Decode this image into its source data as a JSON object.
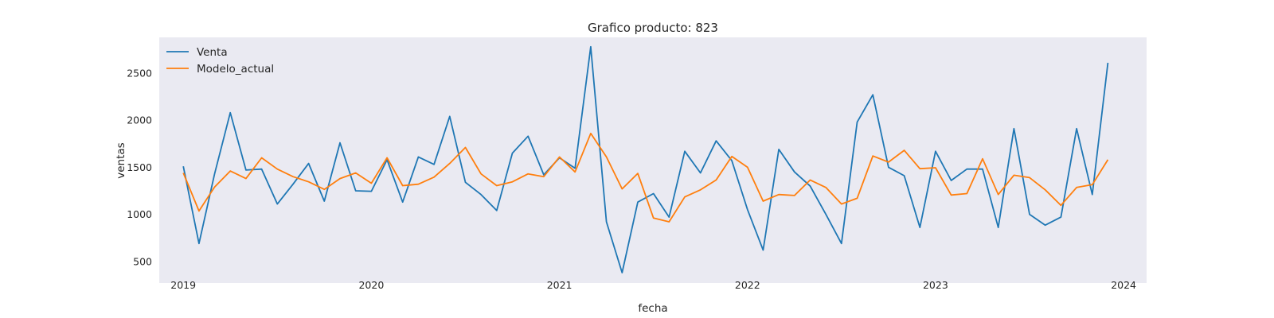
{
  "chart_data": {
    "type": "line",
    "title": "Grafico producto: 823",
    "xlabel": "fecha",
    "ylabel": "ventas",
    "x_start": "2019-01",
    "x": [
      "2019-01",
      "2019-02",
      "2019-03",
      "2019-04",
      "2019-05",
      "2019-06",
      "2019-07",
      "2019-08",
      "2019-09",
      "2019-10",
      "2019-11",
      "2019-12",
      "2020-01",
      "2020-02",
      "2020-03",
      "2020-04",
      "2020-05",
      "2020-06",
      "2020-07",
      "2020-08",
      "2020-09",
      "2020-10",
      "2020-11",
      "2020-12",
      "2021-01",
      "2021-02",
      "2021-03",
      "2021-04",
      "2021-05",
      "2021-06",
      "2021-07",
      "2021-08",
      "2021-09",
      "2021-10",
      "2021-11",
      "2021-12",
      "2022-01",
      "2022-02",
      "2022-03",
      "2022-04",
      "2022-05",
      "2022-06",
      "2022-07",
      "2022-08",
      "2022-09",
      "2022-10",
      "2022-11",
      "2022-12",
      "2023-01",
      "2023-02",
      "2023-03",
      "2023-04",
      "2023-05",
      "2023-06",
      "2023-07",
      "2023-08",
      "2023-09",
      "2023-10",
      "2023-11",
      "2023-12"
    ],
    "xticks": [
      "2019",
      "2020",
      "2021",
      "2022",
      "2023",
      "2024"
    ],
    "yticks": [
      500,
      1000,
      1500,
      2000,
      2500
    ],
    "ylim": [
      270,
      2880
    ],
    "xlim": [
      "2018-11-15",
      "2024-02-15"
    ],
    "grid": false,
    "legend_position": "top-left",
    "series": [
      {
        "name": "Venta",
        "color": "#1f77b4",
        "values": [
          1510,
          690,
          1430,
          2080,
          1470,
          1480,
          1110,
          1320,
          1540,
          1140,
          1760,
          1250,
          1245,
          1580,
          1130,
          1610,
          1530,
          2040,
          1340,
          1210,
          1040,
          1650,
          1830,
          1420,
          1600,
          1490,
          2780,
          920,
          380,
          1130,
          1220,
          970,
          1670,
          1440,
          1780,
          1570,
          1050,
          620,
          1690,
          1450,
          1300,
          1000,
          690,
          1980,
          2270,
          1500,
          1410,
          860,
          1670,
          1360,
          1480,
          1480,
          860,
          1910,
          1000,
          885,
          970,
          1910,
          1210,
          2610
        ]
      },
      {
        "name": "Modelo_actual",
        "color": "#ff7f0e",
        "values": [
          1440,
          1035,
          1290,
          1460,
          1380,
          1600,
          1480,
          1400,
          1345,
          1265,
          1380,
          1440,
          1330,
          1600,
          1305,
          1320,
          1395,
          1540,
          1710,
          1430,
          1305,
          1345,
          1430,
          1400,
          1610,
          1450,
          1860,
          1610,
          1270,
          1435,
          960,
          920,
          1185,
          1260,
          1365,
          1615,
          1500,
          1140,
          1210,
          1200,
          1365,
          1285,
          1110,
          1170,
          1620,
          1555,
          1680,
          1485,
          1495,
          1205,
          1220,
          1590,
          1210,
          1415,
          1390,
          1260,
          1095,
          1285,
          1315,
          1580
        ]
      }
    ]
  }
}
